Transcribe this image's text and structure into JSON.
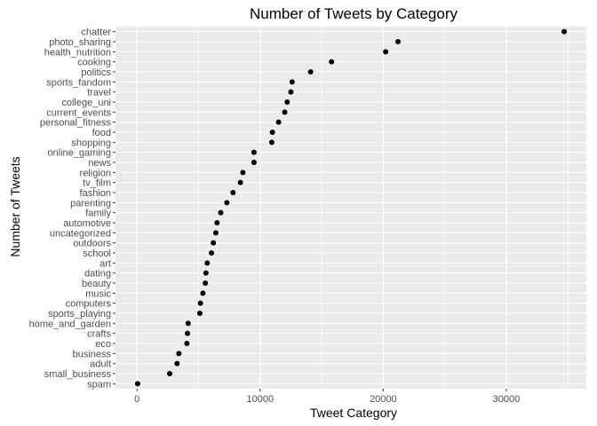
{
  "chart_data": {
    "type": "scatter",
    "title": "Number of Tweets by Category",
    "xlabel": "Tweet Category",
    "ylabel": "Number of Tweets",
    "xlim": [
      -1750,
      36500
    ],
    "x_ticks": [
      0,
      10000,
      20000,
      30000
    ],
    "grid": true,
    "background": "#ebebeb",
    "gridline_color": "#ffffff",
    "point_color": "#000000",
    "categories": [
      "chatter",
      "photo_sharing",
      "health_nutrition",
      "cooking",
      "politics",
      "sports_fandom",
      "travel",
      "college_uni",
      "current_events",
      "personal_fitness",
      "food",
      "shopping",
      "online_gaming",
      "news",
      "religion",
      "tv_film",
      "fashion",
      "parenting",
      "family",
      "automotive",
      "uncategorized",
      "outdoors",
      "school",
      "art",
      "dating",
      "beauty",
      "music",
      "computers",
      "sports_playing",
      "home_and_garden",
      "crafts",
      "eco",
      "business",
      "adult",
      "small_business",
      "spam"
    ],
    "values": [
      34700,
      21200,
      20200,
      15800,
      14100,
      12600,
      12500,
      12200,
      12000,
      11500,
      11000,
      10950,
      9500,
      9500,
      8600,
      8400,
      7800,
      7300,
      6800,
      6500,
      6400,
      6200,
      6050,
      5700,
      5600,
      5550,
      5350,
      5150,
      5100,
      4150,
      4100,
      4050,
      3400,
      3250,
      2650,
      50
    ]
  }
}
